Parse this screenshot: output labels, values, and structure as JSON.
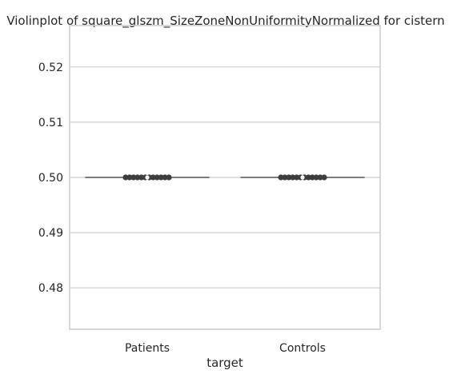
{
  "chart_data": {
    "type": "violin",
    "title": "Violinplot of square_glszm_SizeZoneNonUniformityNormalized for cistern",
    "xlabel": "target",
    "ylabel": "",
    "categories": [
      "Patients",
      "Controls"
    ],
    "series": [
      {
        "category": "Patients",
        "median": 0.5,
        "whisker_range": [
          0.5,
          0.5
        ],
        "points": [
          0.5,
          0.5,
          0.5,
          0.5,
          0.5,
          0.5,
          0.5,
          0.5,
          0.5,
          0.5,
          0.5,
          0.5
        ]
      },
      {
        "category": "Controls",
        "median": 0.5,
        "whisker_range": [
          0.5,
          0.5
        ],
        "points": [
          0.5,
          0.5,
          0.5,
          0.5,
          0.5,
          0.5,
          0.5,
          0.5,
          0.5,
          0.5,
          0.5,
          0.5
        ]
      }
    ],
    "yticks": [
      0.48,
      0.49,
      0.5,
      0.51,
      0.52
    ],
    "ytick_labels": [
      "0.48",
      "0.49",
      "0.50",
      "0.51",
      "0.52"
    ],
    "ylim": [
      0.4725,
      0.5275
    ],
    "grid": true,
    "colors": {
      "grid": "#cccccc",
      "frame": "#cccccc",
      "line": "#555555",
      "point": "#3d3d3d"
    }
  }
}
